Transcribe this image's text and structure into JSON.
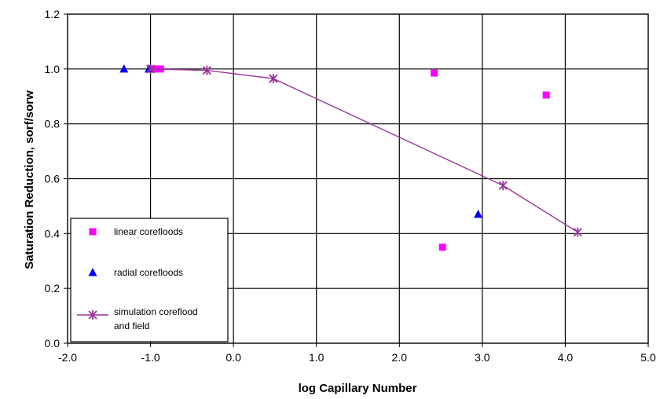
{
  "chart_data": {
    "type": "scatter",
    "xlabel": "log Capillary Number",
    "ylabel": "Saturation Reduction, sorf/sorw",
    "xlim": [
      -2.0,
      5.0
    ],
    "ylim": [
      0.0,
      1.2
    ],
    "x_ticks": [
      "-2.0",
      "-1.0",
      "0.0",
      "1.0",
      "2.0",
      "3.0",
      "4.0",
      "5.0"
    ],
    "y_ticks": [
      "0.0",
      "0.2",
      "0.4",
      "0.6",
      "0.8",
      "1.0",
      "1.2"
    ],
    "grid": true,
    "legend_position": "bottom-left",
    "series": [
      {
        "name": "linear corefloods",
        "marker": "square",
        "color": "#ff00ff",
        "points": [
          {
            "x": -0.95,
            "y": 1.0
          },
          {
            "x": -0.88,
            "y": 1.0
          },
          {
            "x": 2.42,
            "y": 0.985
          },
          {
            "x": 2.52,
            "y": 0.35
          },
          {
            "x": 3.77,
            "y": 0.905
          }
        ]
      },
      {
        "name": "radial corefloods",
        "marker": "triangle",
        "color": "#0000ff",
        "points": [
          {
            "x": -1.32,
            "y": 1.0
          },
          {
            "x": -1.02,
            "y": 1.0
          },
          {
            "x": 2.95,
            "y": 0.47
          }
        ]
      },
      {
        "name": "simulation coreflood and field",
        "marker": "star",
        "color": "#993399",
        "line": true,
        "points": [
          {
            "x": -1.0,
            "y": 1.0
          },
          {
            "x": -0.32,
            "y": 0.995
          },
          {
            "x": 0.48,
            "y": 0.965
          },
          {
            "x": 3.25,
            "y": 0.575
          },
          {
            "x": 4.15,
            "y": 0.405
          }
        ]
      }
    ]
  }
}
